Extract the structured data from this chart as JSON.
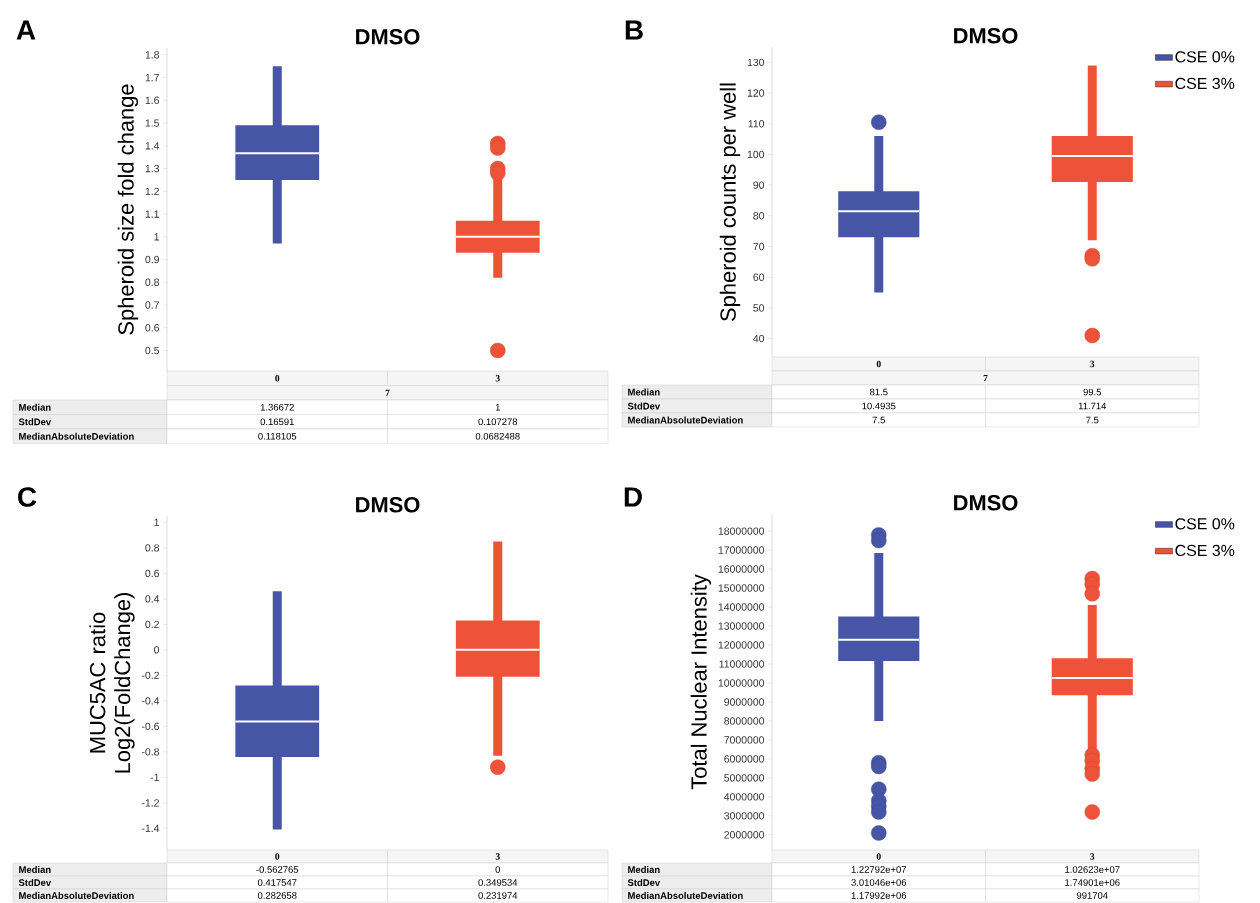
{
  "chart_data": [
    {
      "type": "box",
      "title": "DMSO",
      "ylabel": "Spheroid size fold change",
      "categories": [
        "0",
        "3"
      ],
      "ylim": [
        0.41,
        1.83
      ],
      "yticks": [
        0.5,
        0.6,
        0.7,
        0.8,
        0.9,
        1,
        1.1,
        1.2,
        1.3,
        1.4,
        1.5,
        1.6,
        1.7,
        1.8
      ],
      "marker": "circle",
      "series": [
        {
          "color": "#4655a5",
          "boxes": [
            {
              "low": 0.97,
              "q1": 1.25,
              "median": 1.36672,
              "q3": 1.49,
              "high": 1.75
            },
            null
          ]
        },
        {
          "color": "#ee5239",
          "boxes": [
            null,
            {
              "low": 0.82,
              "q1": 0.93,
              "median": 1,
              "q3": 1.07,
              "high": 1.27,
              "outliers": [
                1.41,
                1.39,
                1.3,
                1.28,
                0.5
              ]
            }
          ]
        }
      ],
      "annotations": [
        "A",
        "7",
        "Median",
        "1.36672",
        "1",
        "StdDev",
        "0.16591",
        "0.107278",
        "MedianAbsoluteDeviation",
        "0.118105",
        "0.0682488"
      ]
    },
    {
      "type": "box",
      "title": "DMSO",
      "ylabel": "Spheroid counts per well",
      "categories": [
        "0",
        "3"
      ],
      "ylim": [
        34,
        135
      ],
      "yticks": [
        40,
        50,
        60,
        70,
        80,
        90,
        100,
        110,
        120,
        130
      ],
      "marker": "circle",
      "legend": "top right",
      "series": [
        {
          "name": "CSE 0%",
          "color": "#4655a5",
          "boxes": [
            {
              "low": 55,
              "q1": 73,
              "median": 81.5,
              "q3": 88,
              "high": 106,
              "outliers": [
                110.5
              ]
            },
            null
          ]
        },
        {
          "name": "CSE 3%",
          "color": "#ee5239",
          "boxes": [
            null,
            {
              "low": 72,
              "q1": 91,
              "median": 99.5,
              "q3": 106,
              "high": 129,
              "outliers": [
                67,
                66,
                41
              ]
            }
          ]
        }
      ],
      "annotations": [
        "B",
        "7",
        "Median",
        "81.5",
        "99.5",
        "StdDev",
        "10.4935",
        "11.714",
        "MedianAbsoluteDeviation",
        "7.5",
        "7.5"
      ]
    },
    {
      "type": "box",
      "title": "DMSO",
      "ylabel": "MUC5AC ratio Log2(FoldChange)",
      "categories": [
        "0",
        "3"
      ],
      "ylim": [
        -1.57,
        1.05
      ],
      "yticks": [
        -1.4,
        -1.2,
        -1,
        -0.8,
        -0.6,
        -0.4,
        -0.2,
        0,
        0.2,
        0.4,
        0.6,
        0.8,
        1
      ],
      "marker": "circle",
      "series": [
        {
          "color": "#4655a5",
          "boxes": [
            {
              "low": -1.41,
              "q1": -0.84,
              "median": -0.562765,
              "q3": -0.28,
              "high": 0.46
            },
            null
          ]
        },
        {
          "color": "#ee5239",
          "boxes": [
            null,
            {
              "low": -0.83,
              "q1": -0.21,
              "median": 0,
              "q3": 0.23,
              "high": 0.85,
              "outliers": [
                -0.92
              ]
            }
          ]
        }
      ],
      "annotations": [
        "C",
        "Median",
        "-0.562765",
        "0",
        "StdDev",
        "0.417547",
        "0.349534",
        "MedianAbsoluteDeviation",
        "0.282658",
        "0.231974"
      ]
    },
    {
      "type": "box",
      "title": "DMSO",
      "ylabel": "Total Nuclear Intensity",
      "categories": [
        "0",
        "3"
      ],
      "ylim": [
        1200000,
        18900000
      ],
      "yticks": [
        2000000,
        3000000,
        4000000,
        5000000,
        6000000,
        7000000,
        8000000,
        9000000,
        10000000,
        11000000,
        12000000,
        13000000,
        14000000,
        15000000,
        16000000,
        17000000,
        18000000
      ],
      "marker": "circle",
      "legend": "top right",
      "series": [
        {
          "name": "CSE 0%",
          "color": "#4655a5",
          "boxes": [
            {
              "low": 8000000,
              "q1": 11150000,
              "median": 12279200,
              "q3": 13500000,
              "high": 16850000,
              "outliers": [
                17800000,
                17500000,
                5800000,
                5600000,
                4400000,
                3800000,
                3500000,
                3200000,
                2100000
              ]
            },
            null
          ]
        },
        {
          "name": "CSE 3%",
          "color": "#ee5239",
          "boxes": [
            null,
            {
              "low": 6400000,
              "q1": 9350000,
              "median": 10262300,
              "q3": 11300000,
              "high": 14100000,
              "outliers": [
                15500000,
                15200000,
                14700000,
                6200000,
                5900000,
                5500000,
                5200000,
                3200000
              ]
            }
          ]
        }
      ],
      "annotations": [
        "D",
        "Median",
        "1.22792e+07",
        "1.02623e+07",
        "StdDev",
        "3.01046e+06",
        "1.74901e+06",
        "MedianAbsoluteDeviation",
        "1.17992e+06",
        "991704"
      ]
    }
  ]
}
